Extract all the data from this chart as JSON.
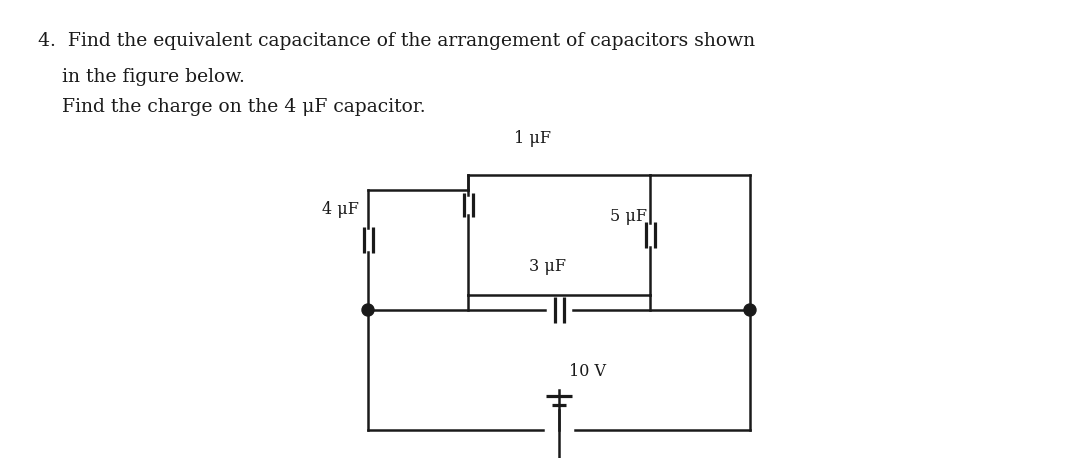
{
  "title_line1": "4.  Find the equivalent capacitance of the arrangement of capacitors shown",
  "title_line2": "    in the figure below.",
  "title_line3": "    Find the charge on the 4 μF capacitor.",
  "cap_4uF": "4 μF",
  "cap_1uF": "1 μF",
  "cap_5uF": "5 μF",
  "cap_3uF": "3 μF",
  "voltage": "10 V",
  "bg_color": "#ffffff",
  "line_color": "#1a1a1a",
  "text_color": "#1a1a1a",
  "font_size_title": 13.5,
  "font_size_label": 11.5
}
